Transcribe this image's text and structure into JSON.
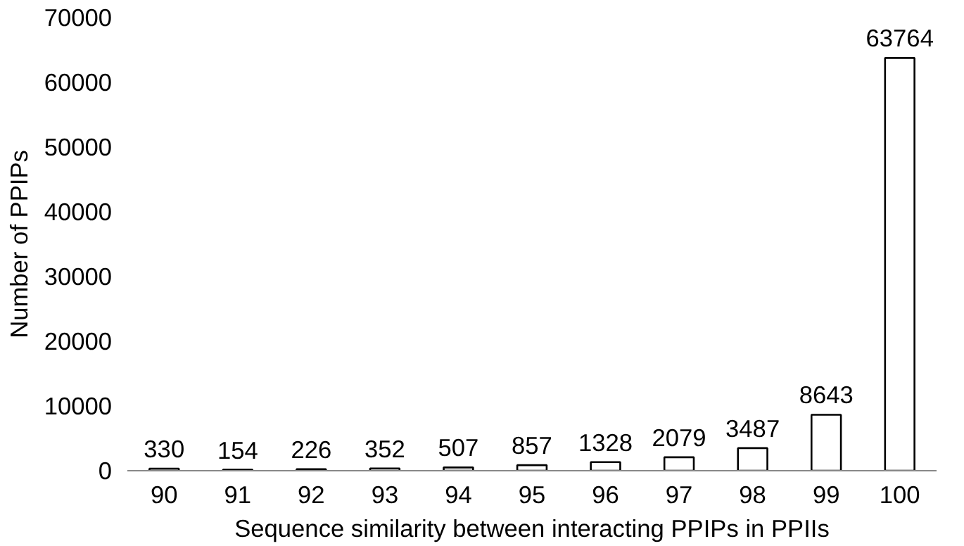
{
  "chart_data": {
    "type": "bar",
    "xlabel": "Sequence similarity between interacting PPIPs in PPIIs",
    "ylabel": "Number of PPIPs",
    "categories": [
      "90",
      "91",
      "92",
      "93",
      "94",
      "95",
      "96",
      "97",
      "98",
      "99",
      "100"
    ],
    "values": [
      330,
      154,
      226,
      352,
      507,
      857,
      1328,
      2079,
      3487,
      8643,
      63764
    ],
    "color": "#ffffff",
    "ylim": [
      0,
      70000
    ],
    "yticks": [
      0,
      10000,
      20000,
      30000,
      40000,
      50000,
      60000,
      70000
    ],
    "grid": false,
    "data_labels": true
  }
}
